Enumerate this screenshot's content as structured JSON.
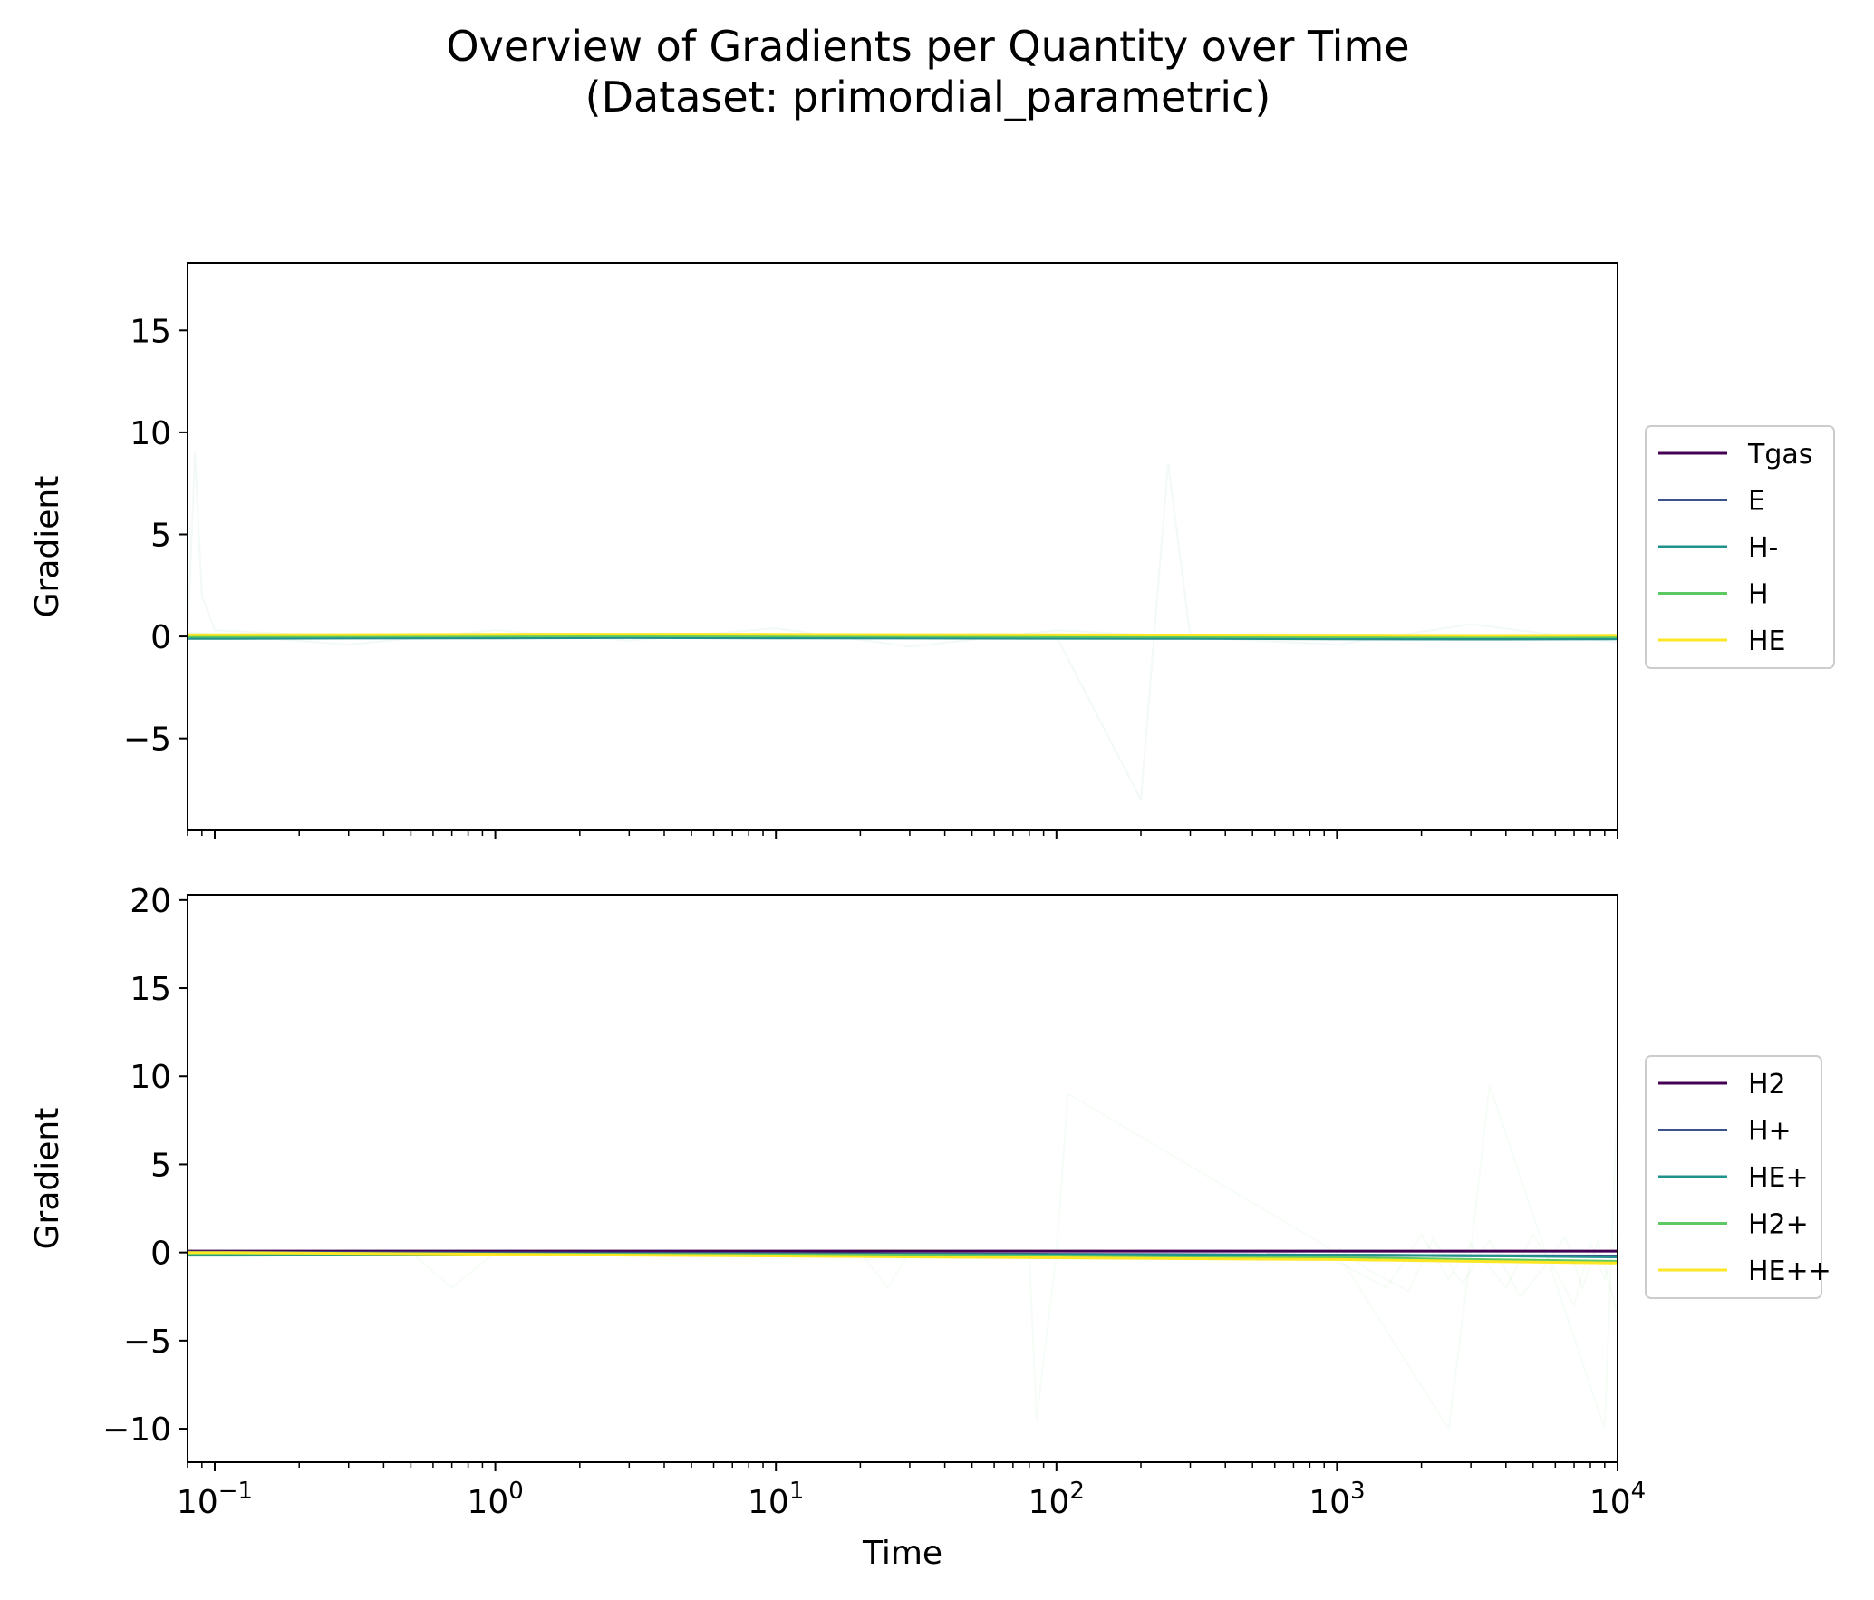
{
  "title": "Overview of Gradients per Quantity over Time",
  "subtitle": "(Dataset: primordial_parametric)",
  "chart_data": [
    {
      "type": "line",
      "panel": "top",
      "xscale": "log",
      "xlim": [
        0.08,
        10000
      ],
      "ylim": [
        -9.5,
        18.3
      ],
      "yticks": [
        -5,
        0,
        5,
        10,
        15
      ],
      "ytick_labels": [
        "−5",
        "0",
        "5",
        "10",
        "15"
      ],
      "ylabel": "Gradient",
      "xlabel": "",
      "show_xtick_labels": false,
      "legend": "center-right (outside)",
      "grid": false,
      "x": [
        0.08,
        0.1,
        0.3,
        1,
        3,
        10,
        30,
        100,
        300,
        1000,
        3000,
        10000
      ],
      "series": [
        {
          "name": "Tgas",
          "color": "#440154",
          "values": [
            0.02,
            0.02,
            0.03,
            0.04,
            0.05,
            0.04,
            0.03,
            0.02,
            0.0,
            -0.02,
            -0.03,
            -0.03
          ]
        },
        {
          "name": "E",
          "color": "#3b528b",
          "values": [
            -0.04,
            -0.04,
            -0.03,
            -0.02,
            -0.01,
            -0.02,
            -0.03,
            -0.04,
            -0.05,
            -0.06,
            -0.07,
            -0.06
          ]
        },
        {
          "name": "H-",
          "color": "#21918c",
          "values": [
            -0.1,
            -0.1,
            -0.08,
            -0.07,
            -0.06,
            -0.07,
            -0.08,
            -0.09,
            -0.1,
            -0.12,
            -0.13,
            -0.12
          ]
        },
        {
          "name": "H",
          "color": "#5ec962",
          "values": [
            0.0,
            0.0,
            0.01,
            0.02,
            0.03,
            0.02,
            0.01,
            0.0,
            -0.01,
            -0.02,
            -0.02,
            -0.02
          ]
        },
        {
          "name": "HE",
          "color": "#fde725",
          "values": [
            0.08,
            0.08,
            0.09,
            0.1,
            0.11,
            0.1,
            0.09,
            0.08,
            0.07,
            0.06,
            0.05,
            0.06
          ]
        }
      ],
      "faint_traces": {
        "color": "#21918c",
        "lines": [
          {
            "x": [
              0.08,
              0.085,
              0.09,
              0.1,
              0.2,
              1,
              10,
              100,
              200,
              250,
              300,
              1000,
              10000
            ],
            "y": [
              0,
              9,
              2,
              0.3,
              0.1,
              0,
              0,
              0,
              -8,
              8.5,
              0,
              0,
              0
            ]
          },
          {
            "x": [
              0.08,
              0.3,
              1,
              3,
              10,
              30,
              100,
              1000,
              3000,
              10000
            ],
            "y": [
              0.2,
              -0.4,
              0.3,
              -0.2,
              0.4,
              -0.5,
              0.3,
              -0.4,
              0.6,
              -0.3
            ]
          }
        ]
      }
    },
    {
      "type": "line",
      "panel": "bottom",
      "xscale": "log",
      "xlim": [
        0.08,
        10000
      ],
      "ylim": [
        -11.9,
        20.3
      ],
      "yticks": [
        -10,
        -5,
        0,
        5,
        10,
        15,
        20
      ],
      "ytick_labels": [
        "−10",
        "−5",
        "0",
        "5",
        "10",
        "15",
        "20"
      ],
      "xticks": [
        0.1,
        1,
        10,
        100,
        1000,
        10000
      ],
      "xtick_labels": [
        {
          "base": "10",
          "exp": "−1"
        },
        {
          "base": "10",
          "exp": "0"
        },
        {
          "base": "10",
          "exp": "1"
        },
        {
          "base": "10",
          "exp": "2"
        },
        {
          "base": "10",
          "exp": "3"
        },
        {
          "base": "10",
          "exp": "4"
        }
      ],
      "ylabel": "Gradient",
      "xlabel": "Time",
      "legend": "center-right (outside)",
      "grid": false,
      "x": [
        0.08,
        0.1,
        0.3,
        1,
        3,
        10,
        30,
        100,
        300,
        1000,
        3000,
        10000
      ],
      "series": [
        {
          "name": "H2",
          "color": "#440154",
          "values": [
            0.08,
            0.08,
            0.08,
            0.08,
            0.08,
            0.08,
            0.08,
            0.08,
            0.08,
            0.08,
            0.08,
            0.08
          ]
        },
        {
          "name": "H+",
          "color": "#3b528b",
          "values": [
            0.02,
            0.02,
            0.0,
            -0.02,
            -0.03,
            -0.05,
            -0.08,
            -0.1,
            -0.12,
            -0.15,
            -0.18,
            -0.2
          ]
        },
        {
          "name": "HE+",
          "color": "#21918c",
          "values": [
            -0.15,
            -0.15,
            -0.14,
            -0.13,
            -0.13,
            -0.12,
            -0.12,
            -0.13,
            -0.14,
            -0.15,
            -0.18,
            -0.25
          ]
        },
        {
          "name": "H2+",
          "color": "#5ec962",
          "values": [
            -0.05,
            -0.05,
            -0.06,
            -0.08,
            -0.1,
            -0.12,
            -0.15,
            -0.2,
            -0.25,
            -0.3,
            -0.4,
            -0.5
          ]
        },
        {
          "name": "HE++",
          "color": "#fde725",
          "values": [
            0.0,
            0.0,
            -0.05,
            -0.1,
            -0.15,
            -0.2,
            -0.25,
            -0.3,
            -0.35,
            -0.4,
            -0.5,
            -0.6
          ]
        }
      ],
      "faint_traces": {
        "color": "#5ec962",
        "lines": [
          {
            "x": [
              0.08,
              0.5,
              0.7,
              1,
              20,
              25,
              30,
              80,
              85,
              100,
              110,
              1000,
              2500,
              3000,
              3500,
              9000,
              10000
            ],
            "y": [
              0,
              0,
              -2,
              0,
              0,
              -2,
              0,
              0,
              -9.5,
              0,
              9,
              0,
              -10,
              0,
              9.5,
              -10,
              9
            ]
          },
          {
            "x": [
              1000,
              1500,
              2000,
              2500,
              3000,
              4000,
              5000,
              6000,
              7000,
              8000,
              9000,
              10000
            ],
            "y": [
              -0.5,
              -2,
              1,
              -1.5,
              0.5,
              -2,
              1,
              -1,
              -3,
              0.5,
              -1.5,
              1
            ]
          },
          {
            "x": [
              1000,
              1300,
              1800,
              2200,
              2800,
              3500,
              4500,
              5500,
              6500,
              7500,
              8500,
              10000
            ],
            "y": [
              0.3,
              -1,
              -2.2,
              0.8,
              -1.8,
              0.7,
              -2.5,
              -0.8,
              0.9,
              -2,
              0.6,
              -3.5
            ]
          }
        ]
      }
    }
  ]
}
